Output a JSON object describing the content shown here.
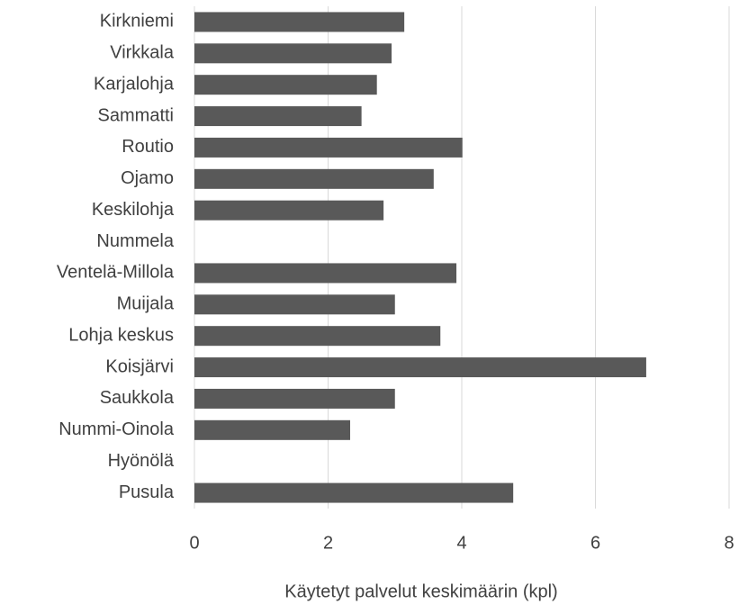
{
  "chart_data": {
    "type": "bar",
    "orientation": "horizontal",
    "xlabel": "Käytetyt palvelut keskimäärin (kpl)",
    "categories": [
      "Kirkniemi",
      "Virkkala",
      "Karjalohja",
      "Sammatti",
      "Routio",
      "Ojamo",
      "Keskilohja",
      "Nummela",
      "Ventelä-Millola",
      "Muijala",
      "Lohja keskus",
      "Koisjärvi",
      "Saukkola",
      "Nummi-Oinola",
      "Hyönölä",
      "Pusula"
    ],
    "values": [
      3.14,
      2.95,
      2.73,
      2.5,
      4.01,
      3.58,
      2.83,
      null,
      3.92,
      3.0,
      3.68,
      6.76,
      3.0,
      2.33,
      null,
      4.77
    ],
    "color": "#595959",
    "xlim": [
      0,
      8
    ],
    "xticks": [
      0,
      2,
      4,
      6,
      8
    ],
    "grid": true
  }
}
